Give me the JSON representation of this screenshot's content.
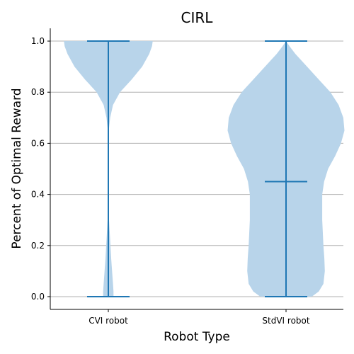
{
  "chart_data": {
    "type": "violin",
    "title": "CIRL",
    "xlabel": "Robot Type",
    "ylabel": "Percent of Optimal Reward",
    "ylim": [
      -0.05,
      1.05
    ],
    "yticks": [
      "0.0",
      "0.2",
      "0.4",
      "0.6",
      "0.8",
      "1.0"
    ],
    "grid": "horizontal",
    "colors": {
      "fill": "#b8d4ea",
      "line": "#1f77b4",
      "grid": "#b0b0b0",
      "axis": "#000000"
    },
    "categories": [
      "CVI robot",
      "StdVI robot"
    ],
    "series": [
      {
        "category": "CVI robot",
        "min": 0.0,
        "max": 1.0,
        "density": [
          [
            0.0,
            0.022
          ],
          [
            0.02,
            0.022
          ],
          [
            0.05,
            0.02
          ],
          [
            0.1,
            0.016
          ],
          [
            0.15,
            0.012
          ],
          [
            0.2,
            0.009
          ],
          [
            0.25,
            0.006
          ],
          [
            0.3,
            0.003
          ],
          [
            0.35,
            0.0
          ],
          [
            0.62,
            0.0
          ],
          [
            0.66,
            0.003
          ],
          [
            0.7,
            0.008
          ],
          [
            0.75,
            0.02
          ],
          [
            0.8,
            0.05
          ],
          [
            0.85,
            0.1
          ],
          [
            0.9,
            0.145
          ],
          [
            0.95,
            0.175
          ],
          [
            0.98,
            0.187
          ],
          [
            1.0,
            0.19
          ]
        ]
      },
      {
        "category": "StdVI robot",
        "min": 0.0,
        "max": 1.0,
        "median": 0.45,
        "density": [
          [
            0.0,
            0.11
          ],
          [
            0.02,
            0.14
          ],
          [
            0.05,
            0.16
          ],
          [
            0.1,
            0.166
          ],
          [
            0.15,
            0.164
          ],
          [
            0.2,
            0.16
          ],
          [
            0.3,
            0.155
          ],
          [
            0.4,
            0.155
          ],
          [
            0.45,
            0.163
          ],
          [
            0.5,
            0.18
          ],
          [
            0.55,
            0.21
          ],
          [
            0.6,
            0.235
          ],
          [
            0.65,
            0.25
          ],
          [
            0.7,
            0.245
          ],
          [
            0.75,
            0.225
          ],
          [
            0.8,
            0.19
          ],
          [
            0.85,
            0.14
          ],
          [
            0.9,
            0.09
          ],
          [
            0.95,
            0.04
          ],
          [
            0.98,
            0.015
          ],
          [
            1.0,
            0.0
          ]
        ]
      }
    ]
  }
}
